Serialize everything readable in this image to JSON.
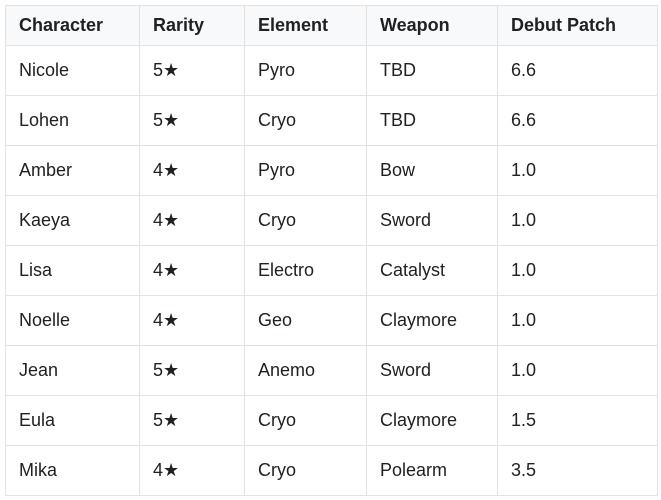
{
  "table": {
    "columns": [
      "Character",
      "Rarity",
      "Element",
      "Weapon",
      "Debut Patch"
    ],
    "rows": [
      [
        "Nicole",
        "5★",
        "Pyro",
        "TBD",
        "6.6"
      ],
      [
        "Lohen",
        "5★",
        "Cryo",
        "TBD",
        "6.6"
      ],
      [
        "Amber",
        "4★",
        "Pyro",
        "Bow",
        "1.0"
      ],
      [
        "Kaeya",
        "4★",
        "Cryo",
        "Sword",
        "1.0"
      ],
      [
        "Lisa",
        "4★",
        "Electro",
        "Catalyst",
        "1.0"
      ],
      [
        "Noelle",
        "4★",
        "Geo",
        "Claymore",
        "1.0"
      ],
      [
        "Jean",
        "5★",
        "Anemo",
        "Sword",
        "1.0"
      ],
      [
        "Eula",
        "5★",
        "Cryo",
        "Claymore",
        "1.5"
      ],
      [
        "Mika",
        "4★",
        "Cryo",
        "Polearm",
        "3.5"
      ]
    ],
    "rarity_star_glyph": "★"
  },
  "colors": {
    "header_background": "#f8f9fa",
    "row_background": "#ffffff",
    "border": "#e2e2e2",
    "text": "#202122",
    "page_background": "#ffffff"
  }
}
